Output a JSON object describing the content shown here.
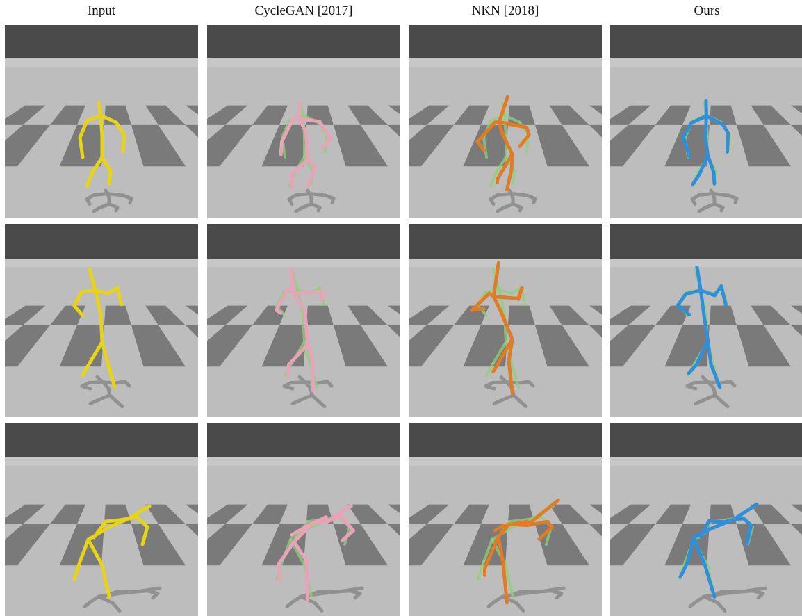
{
  "columns": [
    {
      "title": "Input",
      "color": "#e8d417"
    },
    {
      "title": "CycleGAN [2017]",
      "color": "#e9a3b8"
    },
    {
      "title": "NKN [2018]",
      "color": "#e07b26"
    },
    {
      "title": "Ours",
      "color": "#2f8fd8"
    }
  ],
  "ground_truth_color": "#8fd07a",
  "rows": [
    {
      "pose": "crouch-arms-up"
    },
    {
      "pose": "standing-dance"
    },
    {
      "pose": "bent-over-reach"
    }
  ]
}
